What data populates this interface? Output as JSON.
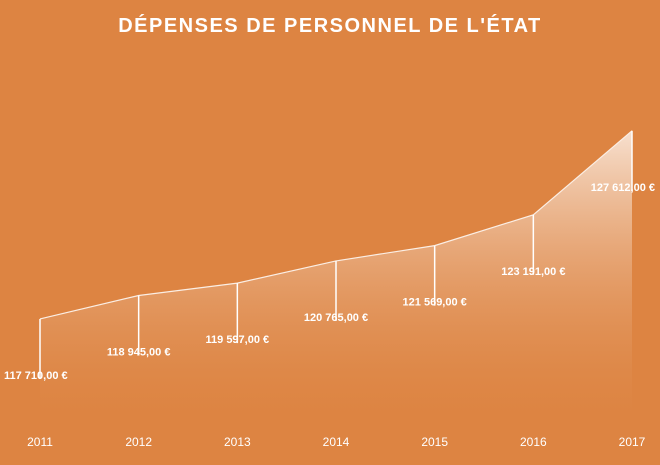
{
  "chart_data": {
    "type": "area",
    "title": "DÉPENSES DE PERSONNEL DE L'ÉTAT",
    "xlabel": "",
    "ylabel": "",
    "categories": [
      "2011",
      "2012",
      "2013",
      "2014",
      "2015",
      "2016",
      "2017"
    ],
    "values": [
      117710,
      118945,
      119597,
      120765,
      121569,
      123191,
      127612
    ],
    "data_labels": [
      "117 710,00 €",
      "118 945,00 €",
      "119 597,00 €",
      "120 765,00 €",
      "121 569,00 €",
      "123 191,00 €",
      "127 612,00 €"
    ],
    "ylim": [
      112500,
      128600
    ],
    "grid": false,
    "legend": "none",
    "colors": {
      "background": "#dd8442",
      "area_top": "#f7e0cf",
      "area_bottom": "#dd8442",
      "text": "#ffffff"
    }
  }
}
